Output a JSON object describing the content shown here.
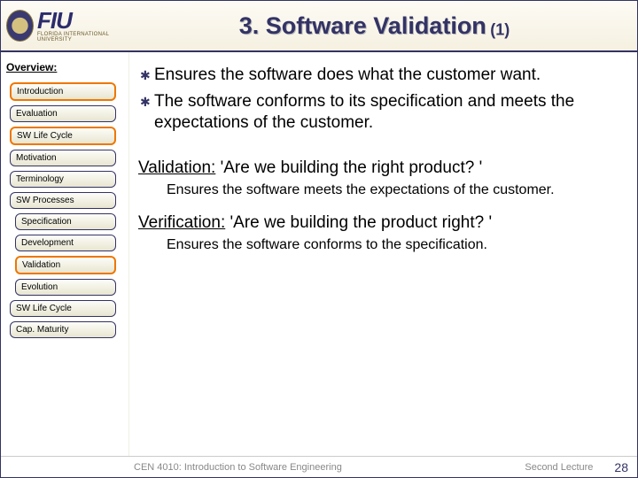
{
  "header": {
    "logo_main": "FIU",
    "logo_sub": "FLORIDA INTERNATIONAL UNIVERSITY",
    "title_main": "3. Software Validation",
    "title_sub": "(1)"
  },
  "sidebar": {
    "heading": "Overview:",
    "items": [
      {
        "label": "Introduction",
        "indent": false,
        "active": true
      },
      {
        "label": "Evaluation",
        "indent": false,
        "active": false
      },
      {
        "label": "SW Life Cycle",
        "indent": false,
        "active": true
      },
      {
        "label": "Motivation",
        "indent": false,
        "active": false
      },
      {
        "label": "Terminology",
        "indent": false,
        "active": false
      },
      {
        "label": "SW Processes",
        "indent": false,
        "active": false
      },
      {
        "label": "Specification",
        "indent": true,
        "active": false
      },
      {
        "label": "Development",
        "indent": true,
        "active": false
      },
      {
        "label": "Validation",
        "indent": true,
        "active": true
      },
      {
        "label": "Evolution",
        "indent": true,
        "active": false
      },
      {
        "label": "SW Life Cycle",
        "indent": false,
        "active": false
      },
      {
        "label": "Cap. Maturity",
        "indent": false,
        "active": false
      }
    ]
  },
  "content": {
    "bullets": [
      "Ensures the software does what the customer want.",
      "The software conforms to its specification and meets the expectations of the customer."
    ],
    "statements": [
      {
        "label": "Validation:",
        "question": " 'Are we building the right product? '",
        "body": "Ensures the software meets the expectations of the customer."
      },
      {
        "label": "Verification:",
        "question": " 'Are we building the product right? '",
        "body": "Ensures the software conforms to the specification."
      }
    ]
  },
  "footer": {
    "course": "CEN 4010: Introduction to Software Engineering",
    "lecture": "Second Lecture",
    "page": "28"
  },
  "colors": {
    "title_color": "#333366",
    "border_color": "#333366",
    "active_border": "#ee7700",
    "background": "#ffffff"
  }
}
